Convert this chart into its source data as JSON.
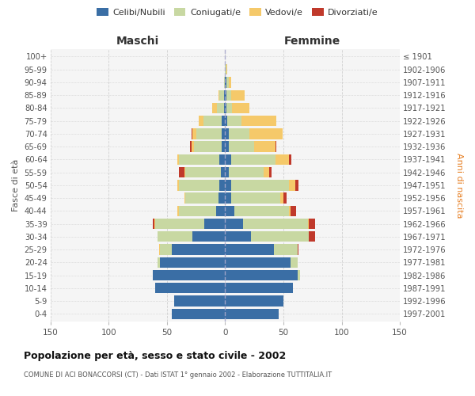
{
  "age_groups": [
    "0-4",
    "5-9",
    "10-14",
    "15-19",
    "20-24",
    "25-29",
    "30-34",
    "35-39",
    "40-44",
    "45-49",
    "50-54",
    "55-59",
    "60-64",
    "65-69",
    "70-74",
    "75-79",
    "80-84",
    "85-89",
    "90-94",
    "95-99",
    "100+"
  ],
  "birth_years": [
    "1997-2001",
    "1992-1996",
    "1987-1991",
    "1982-1986",
    "1977-1981",
    "1972-1976",
    "1967-1971",
    "1962-1966",
    "1957-1961",
    "1952-1956",
    "1947-1951",
    "1942-1946",
    "1937-1941",
    "1932-1936",
    "1927-1931",
    "1922-1926",
    "1917-1921",
    "1912-1916",
    "1907-1911",
    "1902-1906",
    "≤ 1901"
  ],
  "males_celibi": [
    46,
    44,
    60,
    62,
    56,
    46,
    28,
    18,
    8,
    6,
    5,
    4,
    5,
    3,
    3,
    3,
    1,
    1,
    0,
    0,
    0
  ],
  "males_coniugati": [
    0,
    0,
    0,
    0,
    2,
    10,
    30,
    42,
    32,
    28,
    35,
    30,
    35,
    24,
    22,
    16,
    6,
    4,
    1,
    0,
    0
  ],
  "males_vedovi": [
    0,
    0,
    0,
    0,
    0,
    1,
    0,
    1,
    1,
    1,
    1,
    1,
    1,
    2,
    3,
    4,
    4,
    1,
    0,
    0,
    0
  ],
  "males_divorziati": [
    0,
    0,
    0,
    0,
    0,
    0,
    0,
    1,
    0,
    0,
    0,
    5,
    0,
    1,
    1,
    0,
    0,
    0,
    0,
    0,
    0
  ],
  "females_nubili": [
    46,
    50,
    58,
    62,
    56,
    42,
    22,
    15,
    8,
    5,
    5,
    3,
    5,
    3,
    3,
    2,
    1,
    1,
    1,
    0,
    0
  ],
  "females_coniugate": [
    0,
    0,
    0,
    2,
    6,
    20,
    50,
    56,
    47,
    42,
    50,
    30,
    38,
    22,
    18,
    12,
    5,
    4,
    2,
    1,
    0
  ],
  "females_vedove": [
    0,
    0,
    0,
    0,
    0,
    0,
    0,
    1,
    1,
    3,
    5,
    5,
    12,
    18,
    28,
    30,
    15,
    12,
    2,
    1,
    0
  ],
  "females_divorziate": [
    0,
    0,
    0,
    0,
    0,
    1,
    5,
    5,
    5,
    3,
    3,
    2,
    2,
    1,
    0,
    0,
    0,
    0,
    0,
    0,
    0
  ],
  "color_celibi": "#3a6ea5",
  "color_coniugati": "#c8d8a2",
  "color_vedovi": "#f5c96a",
  "color_divorziati": "#c0392b",
  "xlim": 150,
  "title": "Popolazione per età, sesso e stato civile - 2002",
  "subtitle": "COMUNE DI ACI BONACCORSI (CT) - Dati ISTAT 1° gennaio 2002 - Elaborazione TUTTITALIA.IT",
  "label_maschi": "Maschi",
  "label_femmine": "Femmine",
  "ylabel_left": "Fasce di età",
  "ylabel_right": "Anni di nascita",
  "legend_labels": [
    "Celibi/Nubili",
    "Coniugati/e",
    "Vedovi/e",
    "Divorziati/e"
  ],
  "bg_plot": "#f5f5f5",
  "bg_fig": "#ffffff"
}
